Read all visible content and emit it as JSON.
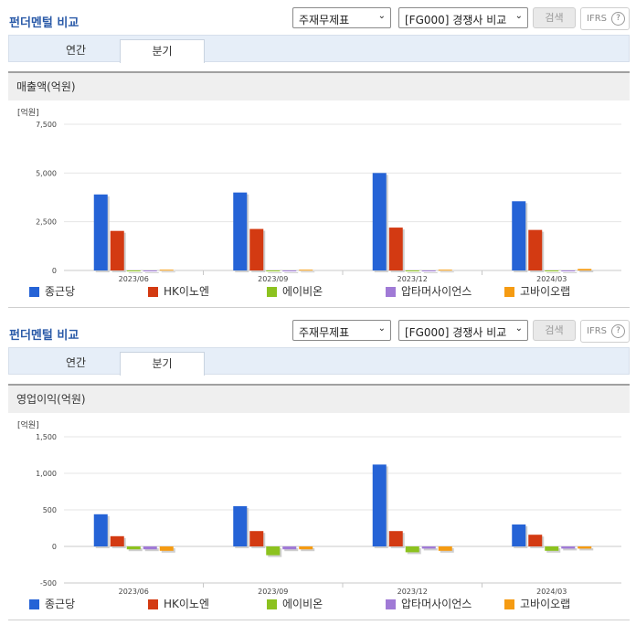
{
  "sections": [
    {
      "title": "펀더멘털 비교",
      "select_statement": "주재무제표",
      "select_compare": "[FG000] 경쟁사 비교",
      "search_label": "검색",
      "ifrs_label": "IFRS",
      "help_symbol": "?",
      "tabs": [
        "연간",
        "분기"
      ],
      "active_tab": 1,
      "chart_title": "매출액(억원)"
    },
    {
      "title": "펀더멘털 비교",
      "select_statement": "주재무제표",
      "select_compare": "[FG000] 경쟁사 비교",
      "search_label": "검색",
      "ifrs_label": "IFRS",
      "help_symbol": "?",
      "tabs": [
        "연간",
        "분기"
      ],
      "active_tab": 1,
      "chart_title": "영업이익(억원)"
    }
  ],
  "chart_data": [
    {
      "type": "bar",
      "unit_label": "[억원]",
      "categories": [
        "2023/06",
        "2023/09",
        "2023/12",
        "2024/03"
      ],
      "ylim": [
        0,
        7500
      ],
      "yticks": [
        0,
        2500,
        5000,
        7500
      ],
      "ytick_labels": [
        "0",
        "2,500",
        "5,000",
        "7,500"
      ],
      "grid": true,
      "legend_position": "bottom",
      "series": [
        {
          "name": "종근당",
          "color": "#2563d6",
          "values": [
            3900,
            4000,
            5000,
            3550
          ]
        },
        {
          "name": "HK이노엔",
          "color": "#d33a12",
          "values": [
            2030,
            2130,
            2200,
            2080
          ]
        },
        {
          "name": "에이비온",
          "color": "#8cc21f",
          "values": [
            0,
            0,
            0,
            0
          ]
        },
        {
          "name": "압타머사이언스",
          "color": "#a07ad6",
          "values": [
            0,
            0,
            0,
            0
          ]
        },
        {
          "name": "고바이오랩",
          "color": "#f59b12",
          "values": [
            40,
            40,
            40,
            80
          ]
        }
      ]
    },
    {
      "type": "bar",
      "unit_label": "[억원]",
      "categories": [
        "2023/06",
        "2023/09",
        "2023/12",
        "2024/03"
      ],
      "ylim": [
        -500,
        1500
      ],
      "yticks": [
        -500,
        0,
        500,
        1000,
        1500
      ],
      "ytick_labels": [
        "-500",
        "0",
        "500",
        "1,000",
        "1,500"
      ],
      "grid": true,
      "legend_position": "bottom",
      "series": [
        {
          "name": "종근당",
          "color": "#2563d6",
          "values": [
            440,
            550,
            1120,
            300
          ]
        },
        {
          "name": "HK이노엔",
          "color": "#d33a12",
          "values": [
            140,
            210,
            210,
            160
          ]
        },
        {
          "name": "에이비온",
          "color": "#8cc21f",
          "values": [
            -40,
            -120,
            -80,
            -60
          ]
        },
        {
          "name": "압타머사이언스",
          "color": "#a07ad6",
          "values": [
            -40,
            -40,
            -30,
            -30
          ]
        },
        {
          "name": "고바이오랩",
          "color": "#f59b12",
          "values": [
            -60,
            -40,
            -60,
            -30
          ]
        }
      ]
    }
  ]
}
